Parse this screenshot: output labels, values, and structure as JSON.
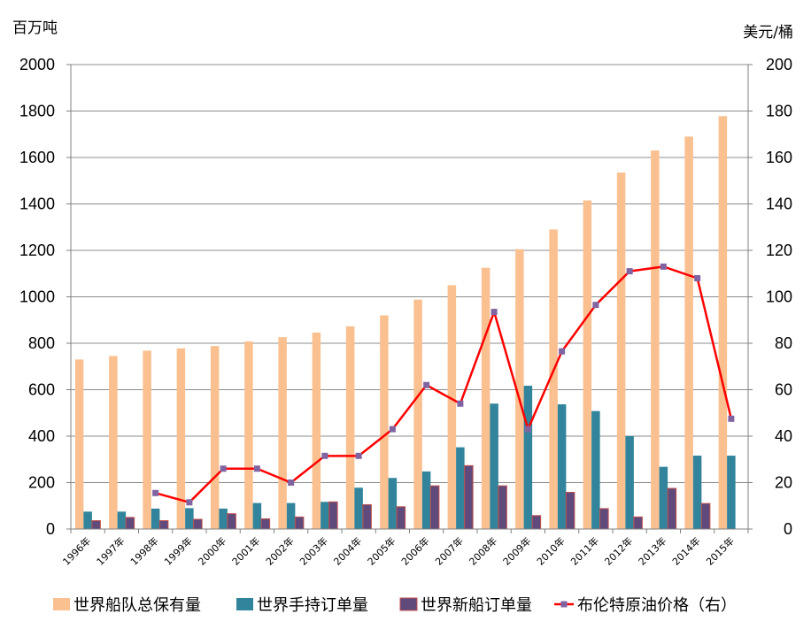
{
  "chart_data": {
    "type": "bar",
    "categories": [
      "1996年",
      "1997年",
      "1998年",
      "1999年",
      "2000年",
      "2001年",
      "2002年",
      "2003年",
      "2004年",
      "2005年",
      "2006年",
      "2007年",
      "2008年",
      "2009年",
      "2010年",
      "2011年",
      "2012年",
      "2013年",
      "2014年",
      "2015年"
    ],
    "y_left_unit": "百万吨",
    "y_right_unit": "美元/桶",
    "ylim_left": [
      0,
      2000
    ],
    "ylim_right": [
      0,
      200
    ],
    "yticks_left": [
      "0",
      "200",
      "400",
      "600",
      "800",
      "1000",
      "1200",
      "1400",
      "1600",
      "1800",
      "2000"
    ],
    "yticks_right": [
      "0",
      "20",
      "40",
      "60",
      "80",
      "100",
      "120",
      "140",
      "160",
      "180",
      "200"
    ],
    "grid": true,
    "legend_position": "bottom",
    "series": [
      {
        "name": "世界船队总保有量",
        "type": "bar",
        "axis": "left",
        "color": "#FAC090",
        "values": [
          730,
          745,
          768,
          778,
          788,
          808,
          826,
          846,
          873,
          920,
          988,
          1050,
          1125,
          1205,
          1290,
          1415,
          1535,
          1630,
          1690,
          1778
        ]
      },
      {
        "name": "世界手持订单量",
        "type": "bar",
        "axis": "left",
        "color": "#31849B",
        "values": [
          75,
          75,
          88,
          90,
          88,
          112,
          112,
          117,
          178,
          220,
          248,
          352,
          540,
          617,
          537,
          508,
          400,
          268,
          316,
          316
        ]
      },
      {
        "name": "世界新船订单量",
        "type": "bar",
        "axis": "left",
        "color": "#604A7B",
        "border": "#C0504D",
        "values": [
          36,
          50,
          36,
          42,
          66,
          44,
          52,
          117,
          105,
          96,
          186,
          273,
          186,
          58,
          158,
          88,
          52,
          175,
          110,
          null
        ]
      },
      {
        "name": "布伦特原油价格（右）",
        "type": "line",
        "axis": "right",
        "color": "#FF0000",
        "marker_color": "#8064A2",
        "values": [
          null,
          null,
          15.5,
          11.5,
          26,
          26,
          20,
          31.5,
          31.5,
          43,
          62,
          54,
          93.5,
          43,
          76.5,
          96.5,
          111,
          113,
          108,
          47.5
        ]
      }
    ]
  }
}
